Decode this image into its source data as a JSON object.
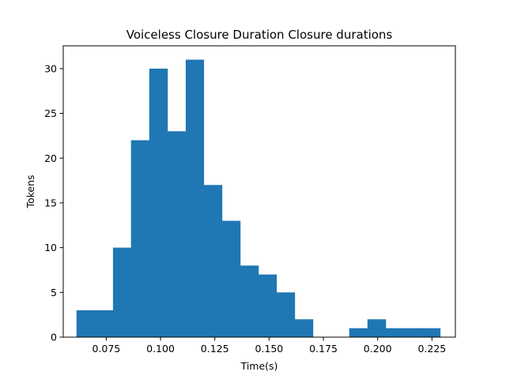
{
  "chart_data": {
    "type": "bar",
    "title": "Voiceless Closure Duration  Closure durations",
    "xlabel": "Time(s)",
    "ylabel": "Tokens",
    "bar_color": "#1f77b4",
    "xlim": [
      0.0552,
      0.2358
    ],
    "ylim": [
      0,
      32.55
    ],
    "xticks": [
      0.075,
      0.1,
      0.125,
      0.15,
      0.175,
      0.2,
      0.225
    ],
    "xtick_labels": [
      "0.075",
      "0.100",
      "0.125",
      "0.150",
      "0.175",
      "0.200",
      "0.225"
    ],
    "yticks": [
      0,
      5,
      10,
      15,
      20,
      25,
      30
    ],
    "ytick_labels": [
      "0",
      "5",
      "10",
      "15",
      "20",
      "25",
      "30"
    ],
    "grid": false,
    "bin_edges": [
      0.0613,
      0.0697,
      0.0781,
      0.0864,
      0.0948,
      0.1032,
      0.1116,
      0.1199,
      0.1283,
      0.1367,
      0.1451,
      0.1534,
      0.1618,
      0.1702,
      0.1786,
      0.1869,
      0.1953,
      0.2037,
      0.2121,
      0.2204,
      0.2288
    ],
    "values": [
      3,
      3,
      10,
      22,
      30,
      23,
      31,
      17,
      13,
      8,
      7,
      5,
      2,
      0,
      0,
      1,
      2,
      1,
      1,
      1
    ]
  }
}
